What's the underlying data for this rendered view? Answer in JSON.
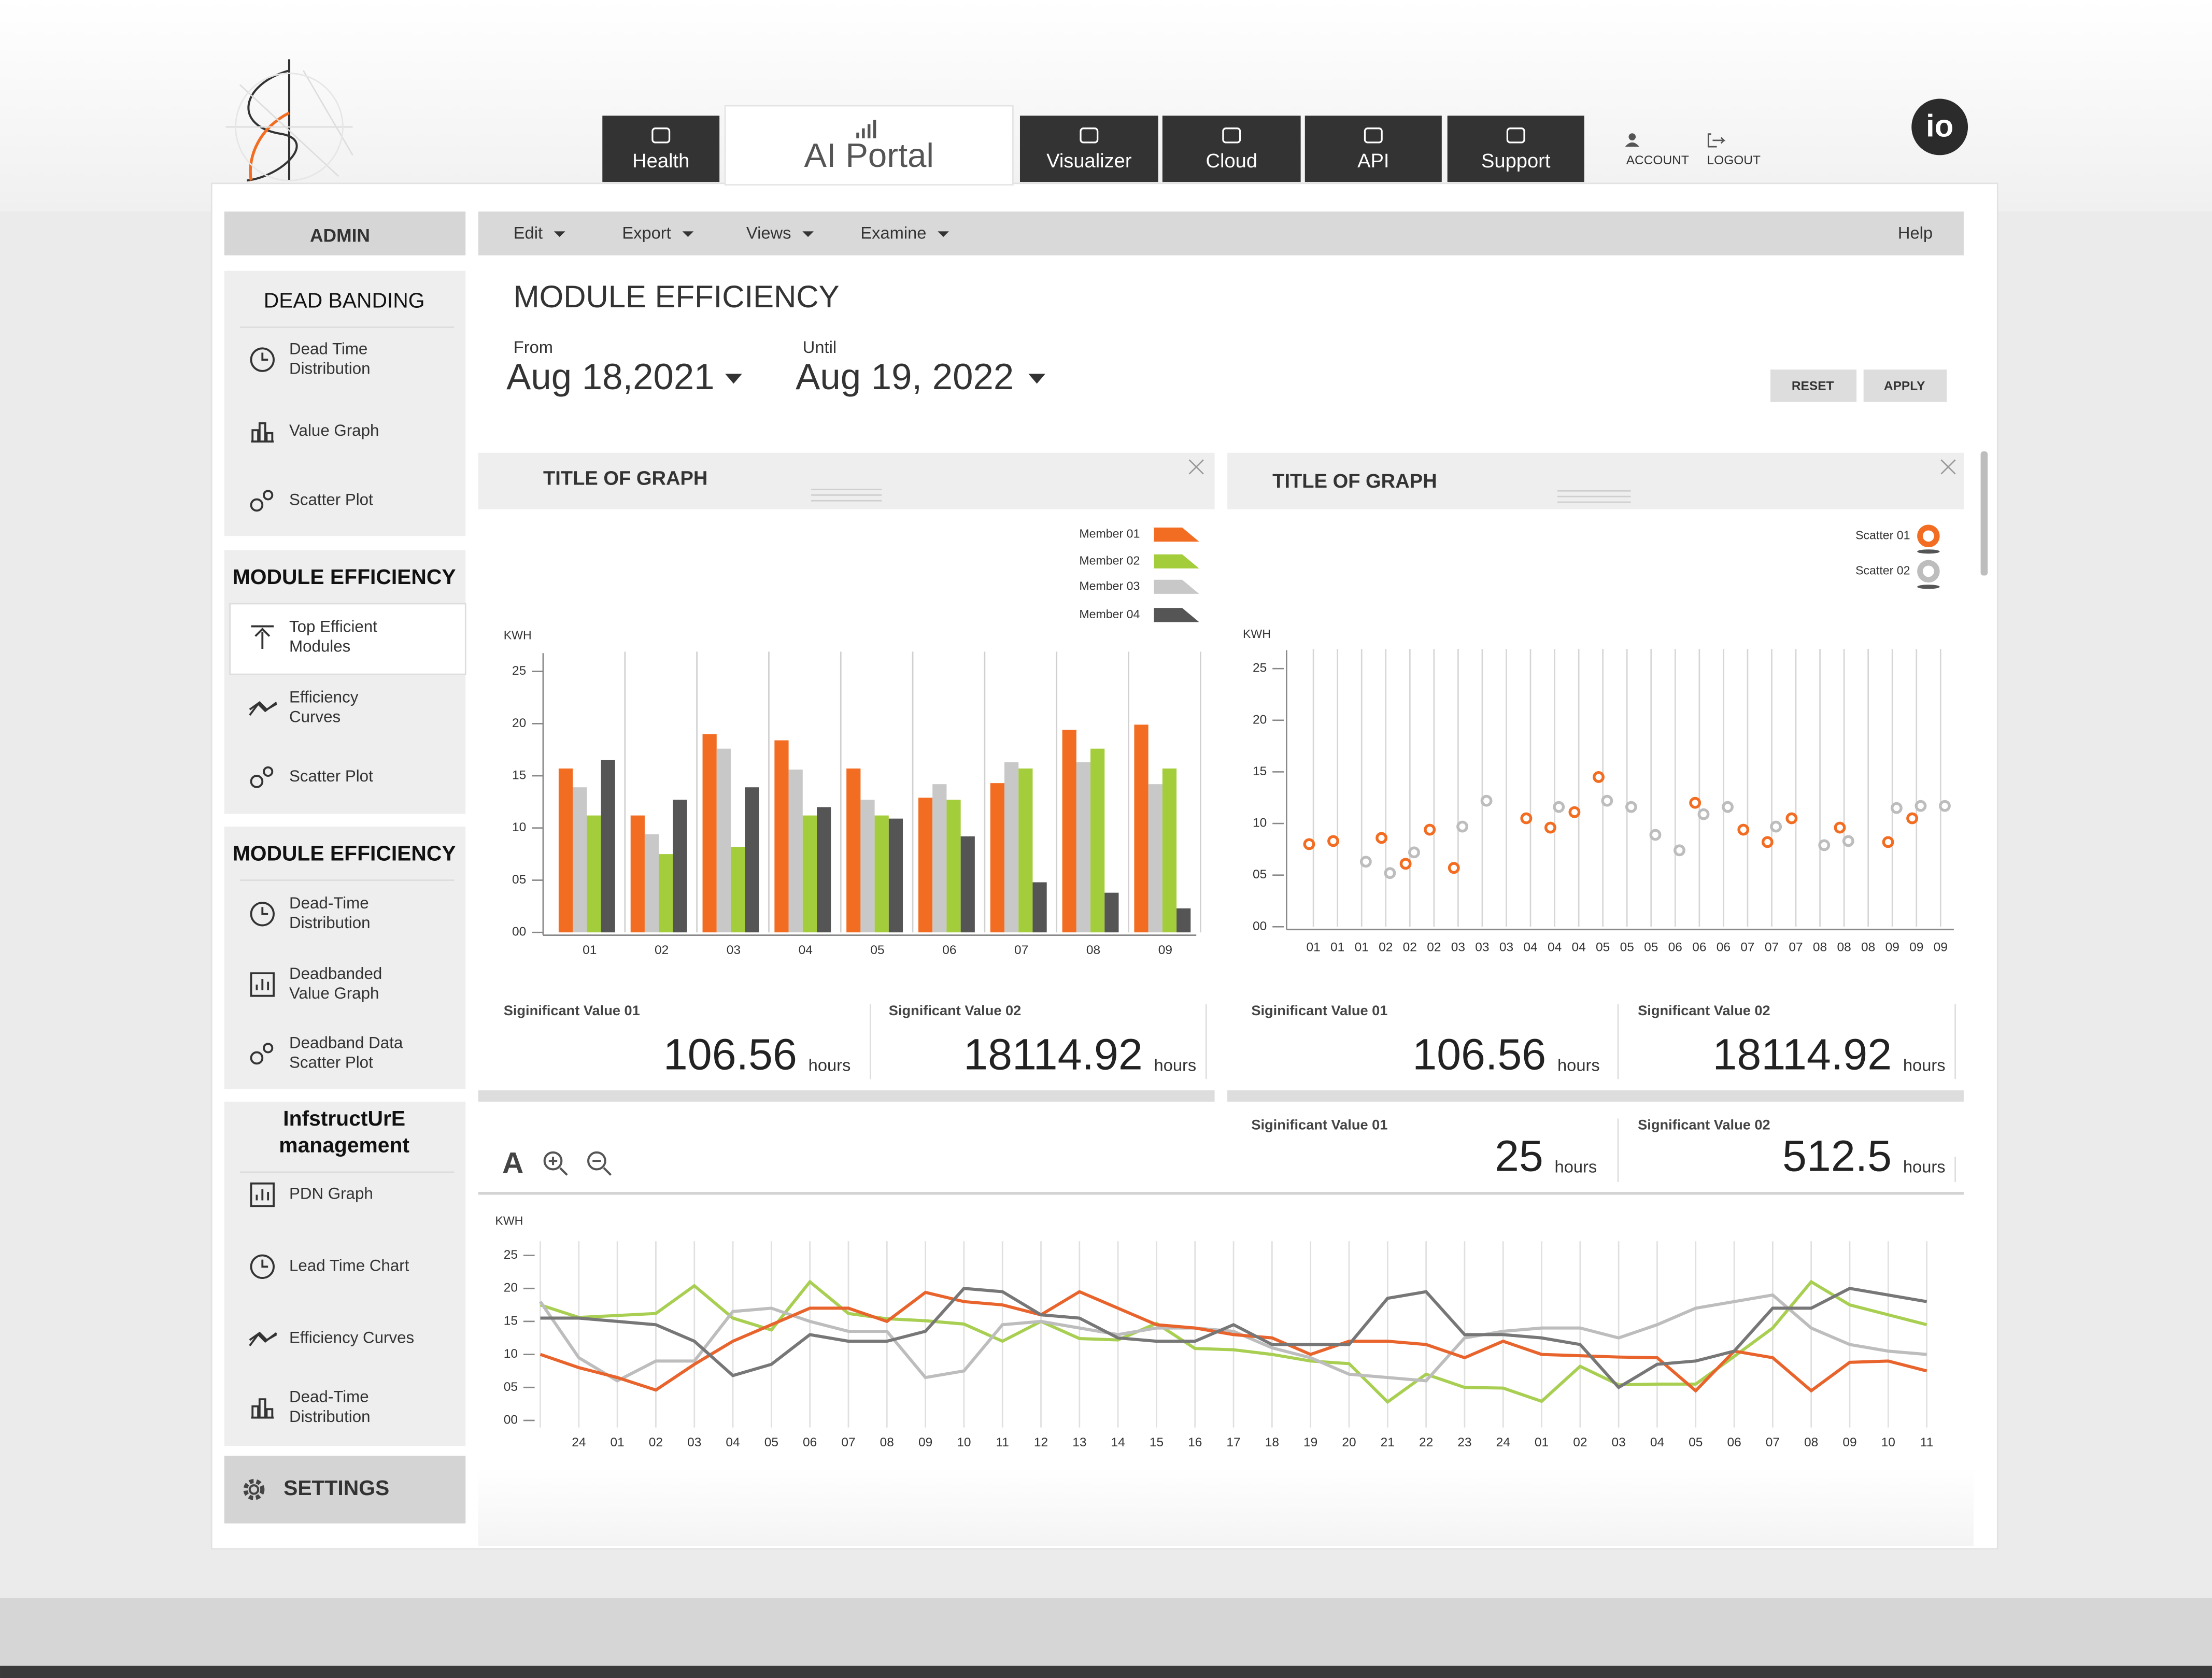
{
  "nav": {
    "tabs": [
      "Health",
      "AI Portal",
      "Visualizer",
      "Cloud",
      "API",
      "Support"
    ],
    "account": "ACCOUNT",
    "logout": "LOGOUT",
    "brand": "io"
  },
  "sidebar": {
    "admin": "ADMIN",
    "sections": [
      {
        "title": [
          "DEAD BANDING"
        ],
        "items": [
          [
            "Dead Time",
            "Distribution"
          ],
          [
            "Value Graph"
          ],
          [
            "Scatter Plot"
          ]
        ]
      },
      {
        "title": [
          "MODULE EFFICIENCY"
        ],
        "items": [
          [
            "Top Efficient",
            "Modules"
          ],
          [
            "Efficiency",
            "Curves"
          ],
          [
            "Scatter Plot"
          ]
        ]
      },
      {
        "title": [
          "MODULE EFFICIENCY"
        ],
        "items": [
          [
            "Dead-Time",
            "Distribution"
          ],
          [
            "Deadbanded",
            "Value Graph"
          ],
          [
            "Deadband Data",
            "Scatter Plot"
          ]
        ]
      },
      {
        "title": [
          "InfstructUrE",
          "management"
        ],
        "items": [
          [
            "PDN Graph"
          ],
          [
            "Lead Time Chart"
          ],
          [
            "Efficiency Curves"
          ],
          [
            "Dead-Time",
            "Distribution"
          ]
        ]
      }
    ],
    "settings": "SETTINGS"
  },
  "menu": {
    "items": [
      "Edit",
      "Export",
      "Views",
      "Examine"
    ],
    "help": "Help"
  },
  "page": {
    "title": "MODULE EFFICIENCY",
    "from_label": "From",
    "from": "Aug 18,2021",
    "until_label": "Until",
    "until": "Aug 19, 2022",
    "reset": "RESET",
    "apply": "APPLY",
    "font_tool": "A"
  },
  "chart_data": [
    {
      "type": "bar",
      "title": "TITLE OF GRAPH",
      "y_label": "KWH",
      "categories": [
        "01",
        "02",
        "03",
        "04",
        "05",
        "06",
        "07",
        "08",
        "09"
      ],
      "series": [
        {
          "name": "Member 01",
          "color": "#f26d21",
          "values": [
            15.7,
            11.2,
            19.0,
            18.4,
            15.7,
            12.9,
            14.3,
            19.4,
            19.9
          ]
        },
        {
          "name": "Member 02",
          "color": "#a3cd3b",
          "values": [
            11.2,
            7.5,
            8.2,
            11.2,
            11.2,
            12.7,
            15.7,
            17.6,
            15.7
          ]
        },
        {
          "name": "Member 03",
          "color": "#c8c8c8",
          "values": [
            13.9,
            9.4,
            17.6,
            15.6,
            12.7,
            14.2,
            16.3,
            16.3,
            14.2
          ]
        },
        {
          "name": "Member 04",
          "color": "#555555",
          "values": [
            16.5,
            12.7,
            13.9,
            12.0,
            10.9,
            9.2,
            4.8,
            3.8,
            2.3
          ]
        }
      ],
      "ylim": [
        0,
        25
      ],
      "yticks": [
        {
          "value": 0,
          "label": "00"
        },
        {
          "value": 5,
          "label": "05"
        },
        10,
        15,
        20,
        25
      ]
    },
    {
      "type": "scatter",
      "title": "TITLE OF GRAPH",
      "y_label": "KWH",
      "categories": [
        "01",
        "01",
        "01",
        "02",
        "02",
        "02",
        "03",
        "03",
        "03",
        "04",
        "04",
        "04",
        "05",
        "05",
        "05",
        "06",
        "06",
        "06",
        "07",
        "07",
        "07",
        "08",
        "08",
        "08",
        "09",
        "09",
        "09"
      ],
      "series": [
        {
          "name": "Scatter 01",
          "color": "#f26d21",
          "values": [
            8.0,
            8.3,
            null,
            8.6,
            6.1,
            9.4,
            5.7,
            null,
            null,
            10.5,
            9.6,
            11.1,
            14.5,
            null,
            null,
            null,
            12.0,
            null,
            9.4,
            8.2,
            10.5,
            null,
            9.6,
            null,
            8.2,
            10.5,
            null
          ]
        },
        {
          "name": "Scatter 02",
          "color": "#bdbdbd",
          "values": [
            null,
            null,
            6.3,
            5.2,
            7.2,
            null,
            9.7,
            12.2,
            null,
            null,
            11.6,
            null,
            12.2,
            11.6,
            8.9,
            7.4,
            10.9,
            11.6,
            null,
            9.7,
            null,
            7.9,
            8.3,
            null,
            11.5,
            11.7,
            11.7
          ]
        }
      ],
      "ylim": [
        0,
        25
      ],
      "yticks": [
        {
          "value": 0,
          "label": "00"
        },
        {
          "value": 5,
          "label": "05"
        },
        10,
        15,
        20,
        25
      ]
    },
    {
      "type": "line",
      "y_label": "KWH",
      "categories": [
        null,
        "24",
        "01",
        "02",
        "03",
        "04",
        "05",
        "06",
        "07",
        "08",
        "09",
        "10",
        "11",
        "12",
        "13",
        "14",
        "15",
        "16",
        "17",
        "18",
        "19",
        "20",
        "21",
        "22",
        "23",
        "24",
        "01",
        "02",
        "03",
        "04",
        "05",
        "06",
        "07",
        "08",
        "09",
        "10",
        "11"
      ],
      "series": [
        {
          "color": "#a8cf52",
          "values": [
            17.5,
            15.6,
            15.9,
            16.2,
            20.4,
            15.5,
            13.7,
            21.0,
            16.2,
            15.4,
            15.1,
            14.6,
            12.0,
            15.0,
            12.4,
            12.2,
            14.7,
            10.9,
            10.7,
            10.0,
            9.0,
            8.6,
            2.8,
            7.0,
            5.0,
            4.9,
            2.9,
            8.2,
            5.4,
            5.5,
            5.5,
            9.7,
            14.0,
            21.0,
            17.5,
            16.0,
            14.5
          ]
        },
        {
          "color": "#bdbdbd",
          "values": [
            18.0,
            9.5,
            6.0,
            9.0,
            9.0,
            16.5,
            17.0,
            15.0,
            13.5,
            13.5,
            6.5,
            7.5,
            14.5,
            15.0,
            14.0,
            13.0,
            14.0,
            14.0,
            13.5,
            11.0,
            9.5,
            7.0,
            6.5,
            6.0,
            12.5,
            13.5,
            14.0,
            14.0,
            12.5,
            14.5,
            17.0,
            18.0,
            19.0,
            14.0,
            11.5,
            10.5,
            10.0
          ]
        },
        {
          "color": "#e8642c",
          "values": [
            10.0,
            8.0,
            6.5,
            4.6,
            8.5,
            12.0,
            14.5,
            17.0,
            17.0,
            15.0,
            19.4,
            18.0,
            17.5,
            16.0,
            19.5,
            17.0,
            14.5,
            14.0,
            13.0,
            12.5,
            10.0,
            12.0,
            12.0,
            11.5,
            9.5,
            12.0,
            10.0,
            9.8,
            9.6,
            9.5,
            4.5,
            10.5,
            9.5,
            4.5,
            8.8,
            9.0,
            7.5
          ]
        },
        {
          "color": "#777777",
          "values": [
            15.5,
            15.5,
            15.0,
            14.5,
            12.0,
            6.8,
            8.5,
            13.0,
            12.0,
            12.0,
            13.5,
            20.0,
            19.5,
            16.0,
            15.5,
            12.5,
            12.0,
            12.0,
            14.5,
            11.5,
            11.5,
            11.5,
            18.5,
            19.5,
            13.0,
            13.0,
            12.5,
            11.5,
            5.0,
            8.5,
            9.0,
            10.5,
            17.0,
            17.0,
            20.0,
            19.0,
            18.0
          ]
        }
      ],
      "ylim": [
        0,
        25
      ],
      "yticks": [
        {
          "value": 0,
          "label": "00"
        },
        {
          "value": 5,
          "label": "05"
        },
        10,
        15,
        20,
        25
      ]
    }
  ],
  "stats": [
    {
      "label": "Siginificant Value 01",
      "value": 106.56,
      "unit": "hours"
    },
    {
      "label": "Significant Value 02",
      "value": 18114.92,
      "unit": "hours"
    },
    {
      "label": "Siginificant Value 01",
      "value": 106.56,
      "unit": "hours"
    },
    {
      "label": "Significant Value 02",
      "value": 18114.92,
      "unit": "hours"
    },
    {
      "label": "Siginificant Value 01",
      "value": 25,
      "unit": "hours"
    },
    {
      "label": "Significant Value 02",
      "value": 512.5,
      "unit": "hours"
    }
  ]
}
